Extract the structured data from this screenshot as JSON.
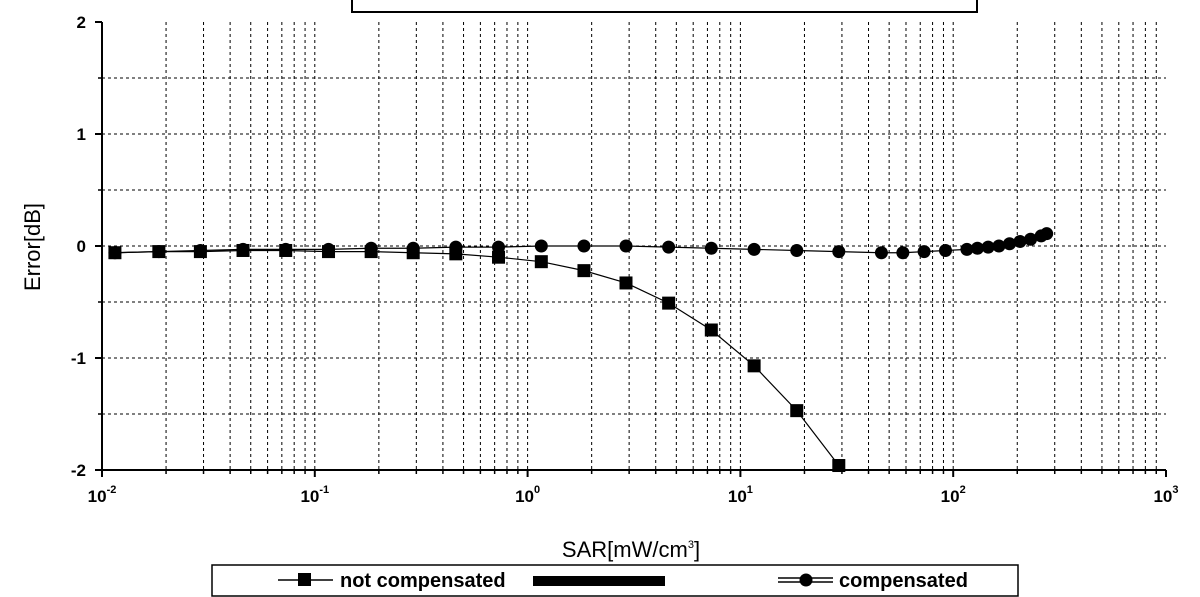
{
  "chart_data": {
    "type": "scatter",
    "title": "",
    "xlabel": "SAR[mW/cm3]",
    "xlabel_main": "SAR[mW/cm",
    "xlabel_sup": "3",
    "xlabel_tail": "]",
    "ylabel": "Error[dB]",
    "xscale": "log",
    "xlim": [
      0.01,
      1000
    ],
    "ylim": [
      -2,
      2
    ],
    "grid": true,
    "legend_position": "bottom",
    "x_ticks": [
      {
        "base": "10",
        "exp": "-2",
        "value": 0.01
      },
      {
        "base": "10",
        "exp": "-1",
        "value": 0.1
      },
      {
        "base": "10",
        "exp": "0",
        "value": 1
      },
      {
        "base": "10",
        "exp": "1",
        "value": 10
      },
      {
        "base": "10",
        "exp": "2",
        "value": 100
      },
      {
        "base": "10",
        "exp": "3",
        "value": 1000
      }
    ],
    "y_ticks": [
      "2",
      "1",
      "0",
      "-1",
      "-2"
    ],
    "y_tick_values": [
      2,
      1,
      0,
      -1,
      -2
    ],
    "series": [
      {
        "name": "not compensated",
        "marker": "square",
        "points": [
          [
            0.0115,
            -0.06
          ],
          [
            0.0185,
            -0.05
          ],
          [
            0.029,
            -0.05
          ],
          [
            0.046,
            -0.04
          ],
          [
            0.073,
            -0.04
          ],
          [
            0.116,
            -0.05
          ],
          [
            0.184,
            -0.05
          ],
          [
            0.29,
            -0.06
          ],
          [
            0.46,
            -0.07
          ],
          [
            0.73,
            -0.1
          ],
          [
            1.16,
            -0.14
          ],
          [
            1.84,
            -0.22
          ],
          [
            2.9,
            -0.33
          ],
          [
            4.6,
            -0.51
          ],
          [
            7.3,
            -0.75
          ],
          [
            11.6,
            -1.07
          ],
          [
            18.4,
            -1.47
          ],
          [
            29,
            -1.96
          ]
        ]
      },
      {
        "name": "compensated",
        "marker": "circle",
        "points": [
          [
            0.0115,
            -0.06
          ],
          [
            0.0185,
            -0.05
          ],
          [
            0.029,
            -0.04
          ],
          [
            0.046,
            -0.03
          ],
          [
            0.073,
            -0.03
          ],
          [
            0.116,
            -0.03
          ],
          [
            0.184,
            -0.02
          ],
          [
            0.29,
            -0.02
          ],
          [
            0.46,
            -0.01
          ],
          [
            0.73,
            -0.01
          ],
          [
            1.16,
            0.0
          ],
          [
            1.84,
            0.0
          ],
          [
            2.9,
            0.0
          ],
          [
            4.6,
            -0.01
          ],
          [
            7.3,
            -0.02
          ],
          [
            11.6,
            -0.03
          ],
          [
            18.4,
            -0.04
          ],
          [
            29,
            -0.05
          ],
          [
            46,
            -0.06
          ],
          [
            58,
            -0.06
          ],
          [
            73,
            -0.05
          ],
          [
            92,
            -0.04
          ],
          [
            116,
            -0.03
          ],
          [
            130,
            -0.02
          ],
          [
            146,
            -0.01
          ],
          [
            164,
            0.0
          ],
          [
            184,
            0.02
          ],
          [
            206,
            0.04
          ],
          [
            231,
            0.06
          ],
          [
            259,
            0.09
          ],
          [
            275,
            0.11
          ]
        ]
      }
    ]
  }
}
